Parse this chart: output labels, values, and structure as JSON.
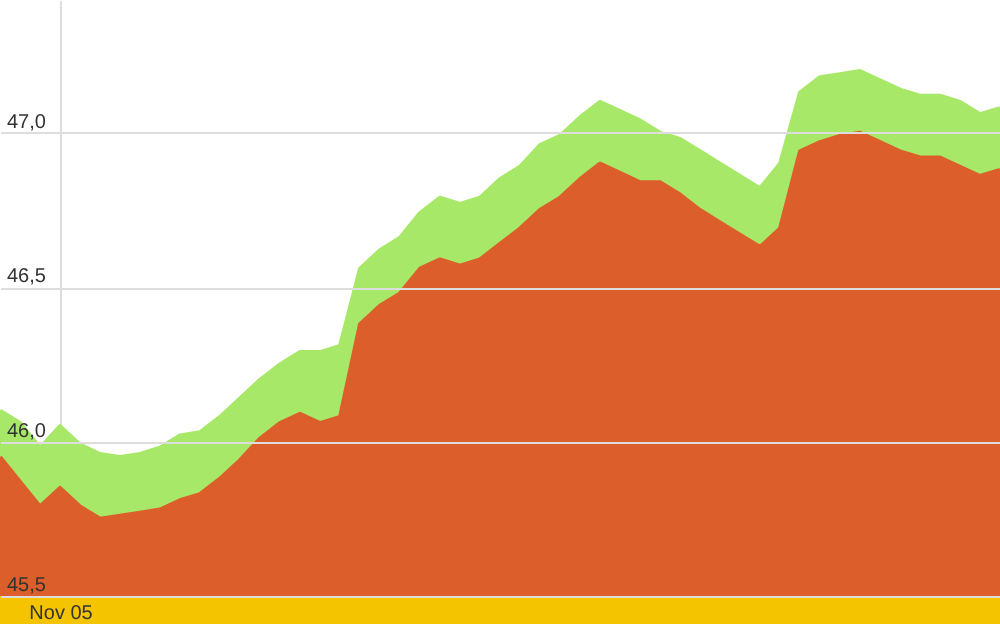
{
  "chart_data": {
    "type": "area",
    "grid": true,
    "categories": [
      null,
      null,
      null,
      "Nov 05",
      null,
      null,
      null,
      null,
      null,
      null,
      null,
      null,
      null,
      null,
      null,
      null,
      null,
      null,
      null,
      null,
      null,
      null,
      null,
      null,
      null,
      null,
      null,
      null,
      null,
      null,
      null,
      null,
      null,
      null,
      null,
      null,
      null,
      null,
      null,
      null,
      null,
      null,
      null,
      null,
      null,
      null,
      null,
      null,
      null,
      null,
      null
    ],
    "ylim": [
      45.5,
      47.43
    ],
    "yticks": [
      {
        "value": 45.5,
        "label": "45,5"
      },
      {
        "value": 46.0,
        "label": "46,0"
      },
      {
        "value": 46.5,
        "label": "46,5"
      },
      {
        "value": 47.0,
        "label": "47,0"
      }
    ],
    "series": [
      {
        "color": "#a8e868",
        "values": [
          46.1,
          46.06,
          45.98,
          46.05,
          45.99,
          45.96,
          45.95,
          45.96,
          45.98,
          46.02,
          46.03,
          46.08,
          46.14,
          46.2,
          46.25,
          46.29,
          46.29,
          46.31,
          46.56,
          46.62,
          46.66,
          46.74,
          46.79,
          46.77,
          46.79,
          46.85,
          46.89,
          46.96,
          46.99,
          47.05,
          47.1,
          47.07,
          47.04,
          47.0,
          46.98,
          46.94,
          46.9,
          46.86,
          46.82,
          46.9,
          47.13,
          47.18,
          47.19,
          47.2,
          47.17,
          47.14,
          47.12,
          47.12,
          47.1,
          47.06,
          47.08
        ]
      },
      {
        "color": "#dc5e2a",
        "values": [
          45.95,
          45.87,
          45.79,
          45.85,
          45.79,
          45.75,
          45.76,
          45.77,
          45.78,
          45.81,
          45.83,
          45.88,
          45.94,
          46.01,
          46.06,
          46.09,
          46.06,
          46.08,
          46.38,
          46.44,
          46.48,
          46.56,
          46.59,
          46.57,
          46.59,
          46.64,
          46.69,
          46.75,
          46.79,
          46.85,
          46.9,
          46.87,
          46.84,
          46.84,
          46.8,
          46.75,
          46.71,
          46.67,
          46.63,
          46.69,
          46.94,
          46.97,
          46.99,
          47.0,
          46.97,
          46.94,
          46.92,
          46.92,
          46.89,
          46.86,
          46.88
        ]
      }
    ]
  }
}
